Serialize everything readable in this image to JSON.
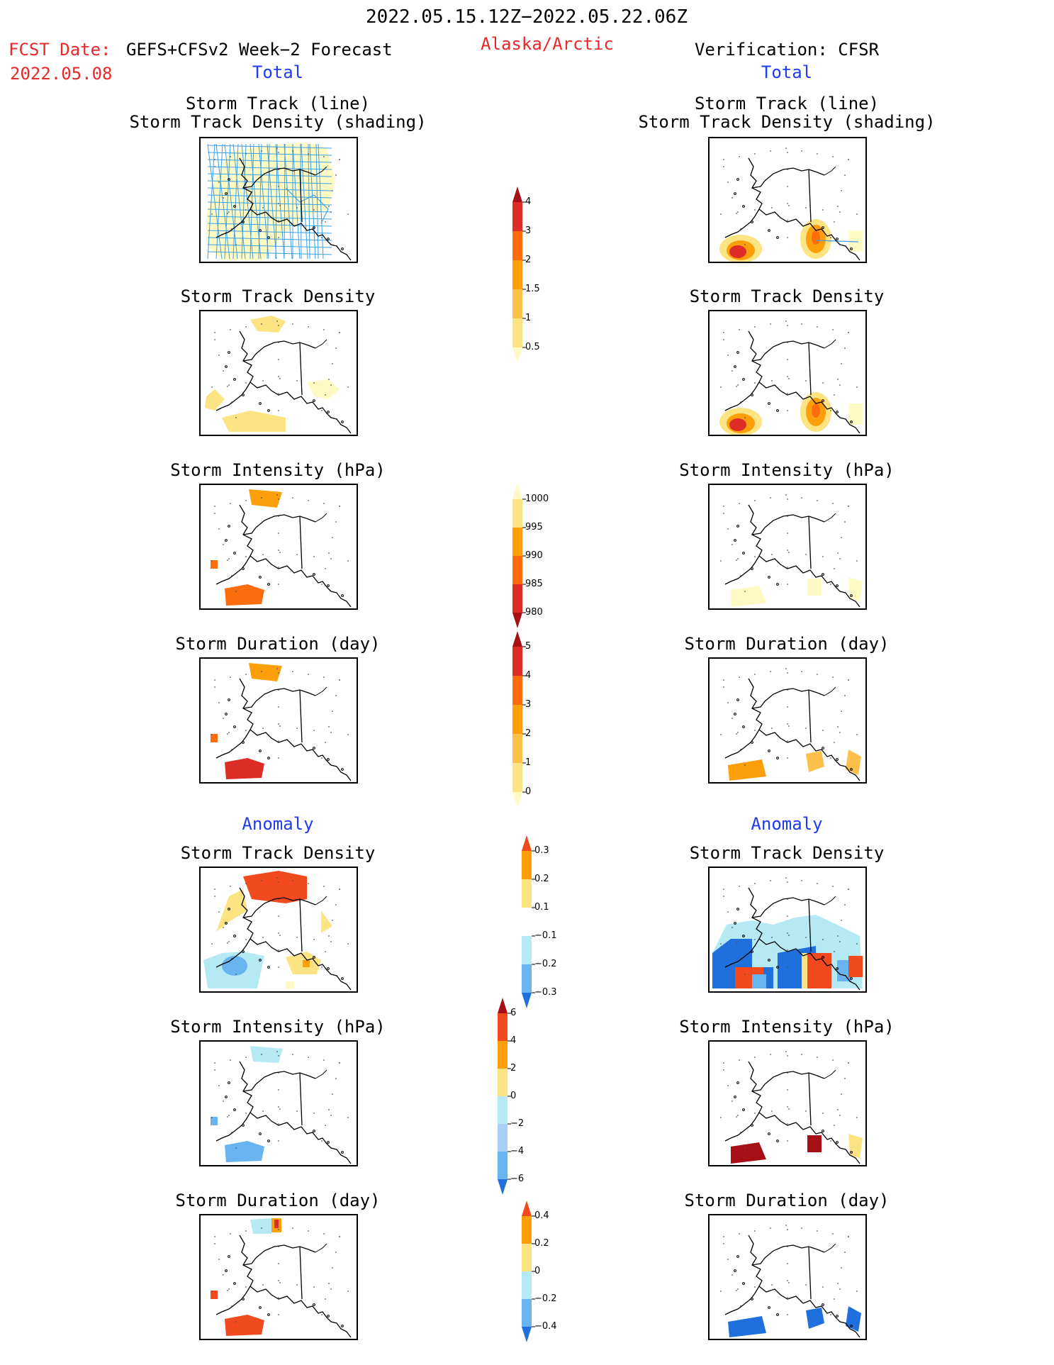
{
  "header": {
    "period": "2022.05.15.12Z−2022.05.22.06Z",
    "fcst_label": "FCST Date:",
    "fcst_model": "GEFS+CFSv2 Week−2 Forecast",
    "fcst_date": "2022.05.08",
    "region": "Alaska/Arctic",
    "verification": "Verification: CFSR"
  },
  "left_column": {
    "total_label": "Total",
    "anomaly_label": "Anomaly",
    "panels": [
      {
        "title_line1": "Storm Track (line)",
        "title_line2": "Storm Track Density (shading)"
      },
      {
        "title_line1": "Storm Track Density"
      },
      {
        "title_line1": "Storm Intensity (hPa)"
      },
      {
        "title_line1": "Storm Duration (day)"
      },
      {
        "title_line1": "Storm Track Density"
      },
      {
        "title_line1": "Storm Intensity (hPa)"
      },
      {
        "title_line1": "Storm Duration (day)"
      }
    ]
  },
  "right_column": {
    "total_label": "Total",
    "anomaly_label": "Anomaly",
    "panels": [
      {
        "title_line1": "Storm Track (line)",
        "title_line2": "Storm Track Density (shading)"
      },
      {
        "title_line1": "Storm Track Density"
      },
      {
        "title_line1": "Storm Intensity (hPa)"
      },
      {
        "title_line1": "Storm Duration (day)"
      },
      {
        "title_line1": "Storm Track Density"
      },
      {
        "title_line1": "Storm Intensity (hPa)"
      },
      {
        "title_line1": "Storm Duration (day)"
      }
    ]
  },
  "colorbars": {
    "density_total": {
      "labels": [
        "4",
        "3",
        "2",
        "1.5",
        "1",
        "0.5"
      ],
      "colors": [
        "#a50f15",
        "#de2d26",
        "#fc6d0d",
        "#fd9f0a",
        "#fdc04a",
        "#fde482",
        "#fff9c4"
      ]
    },
    "intensity_total": {
      "labels": [
        "1000",
        "995",
        "990",
        "985",
        "980"
      ],
      "colors": [
        "#fff9c4",
        "#fde482",
        "#fd9f0a",
        "#fc6d0d",
        "#de2d26",
        "#a50f15"
      ]
    },
    "duration_total": {
      "labels": [
        "5",
        "4",
        "3",
        "2",
        "1",
        "0"
      ],
      "colors": [
        "#a50f15",
        "#de2d26",
        "#fc6d0d",
        "#fd9f0a",
        "#fdc04a",
        "#fde482",
        "#fff9c4"
      ]
    },
    "density_anom": {
      "labels": [
        "0.3",
        "0.2",
        "0.1",
        "−0.1",
        "−0.2",
        "−0.3"
      ],
      "colors": [
        "#f24a1f",
        "#fd9f0a",
        "#fde482",
        "#ffffff",
        "#b5eaf5",
        "#67b4f0",
        "#1f6fdc"
      ]
    },
    "intensity_anom": {
      "labels": [
        "6",
        "4",
        "2",
        "0",
        "−2",
        "−4",
        "−6"
      ],
      "colors": [
        "#a50f15",
        "#f24a1f",
        "#fd9f0a",
        "#fde482",
        "#b5eaf5",
        "#a8d0f6",
        "#67b4f0",
        "#1f6fdc"
      ]
    },
    "duration_anom": {
      "labels": [
        "0.4",
        "0.2",
        "0",
        "−0.2",
        "−0.4"
      ],
      "colors": [
        "#f24a1f",
        "#fd9f0a",
        "#fde482",
        "#b5eaf5",
        "#67b4f0",
        "#1f6fdc"
      ]
    }
  }
}
